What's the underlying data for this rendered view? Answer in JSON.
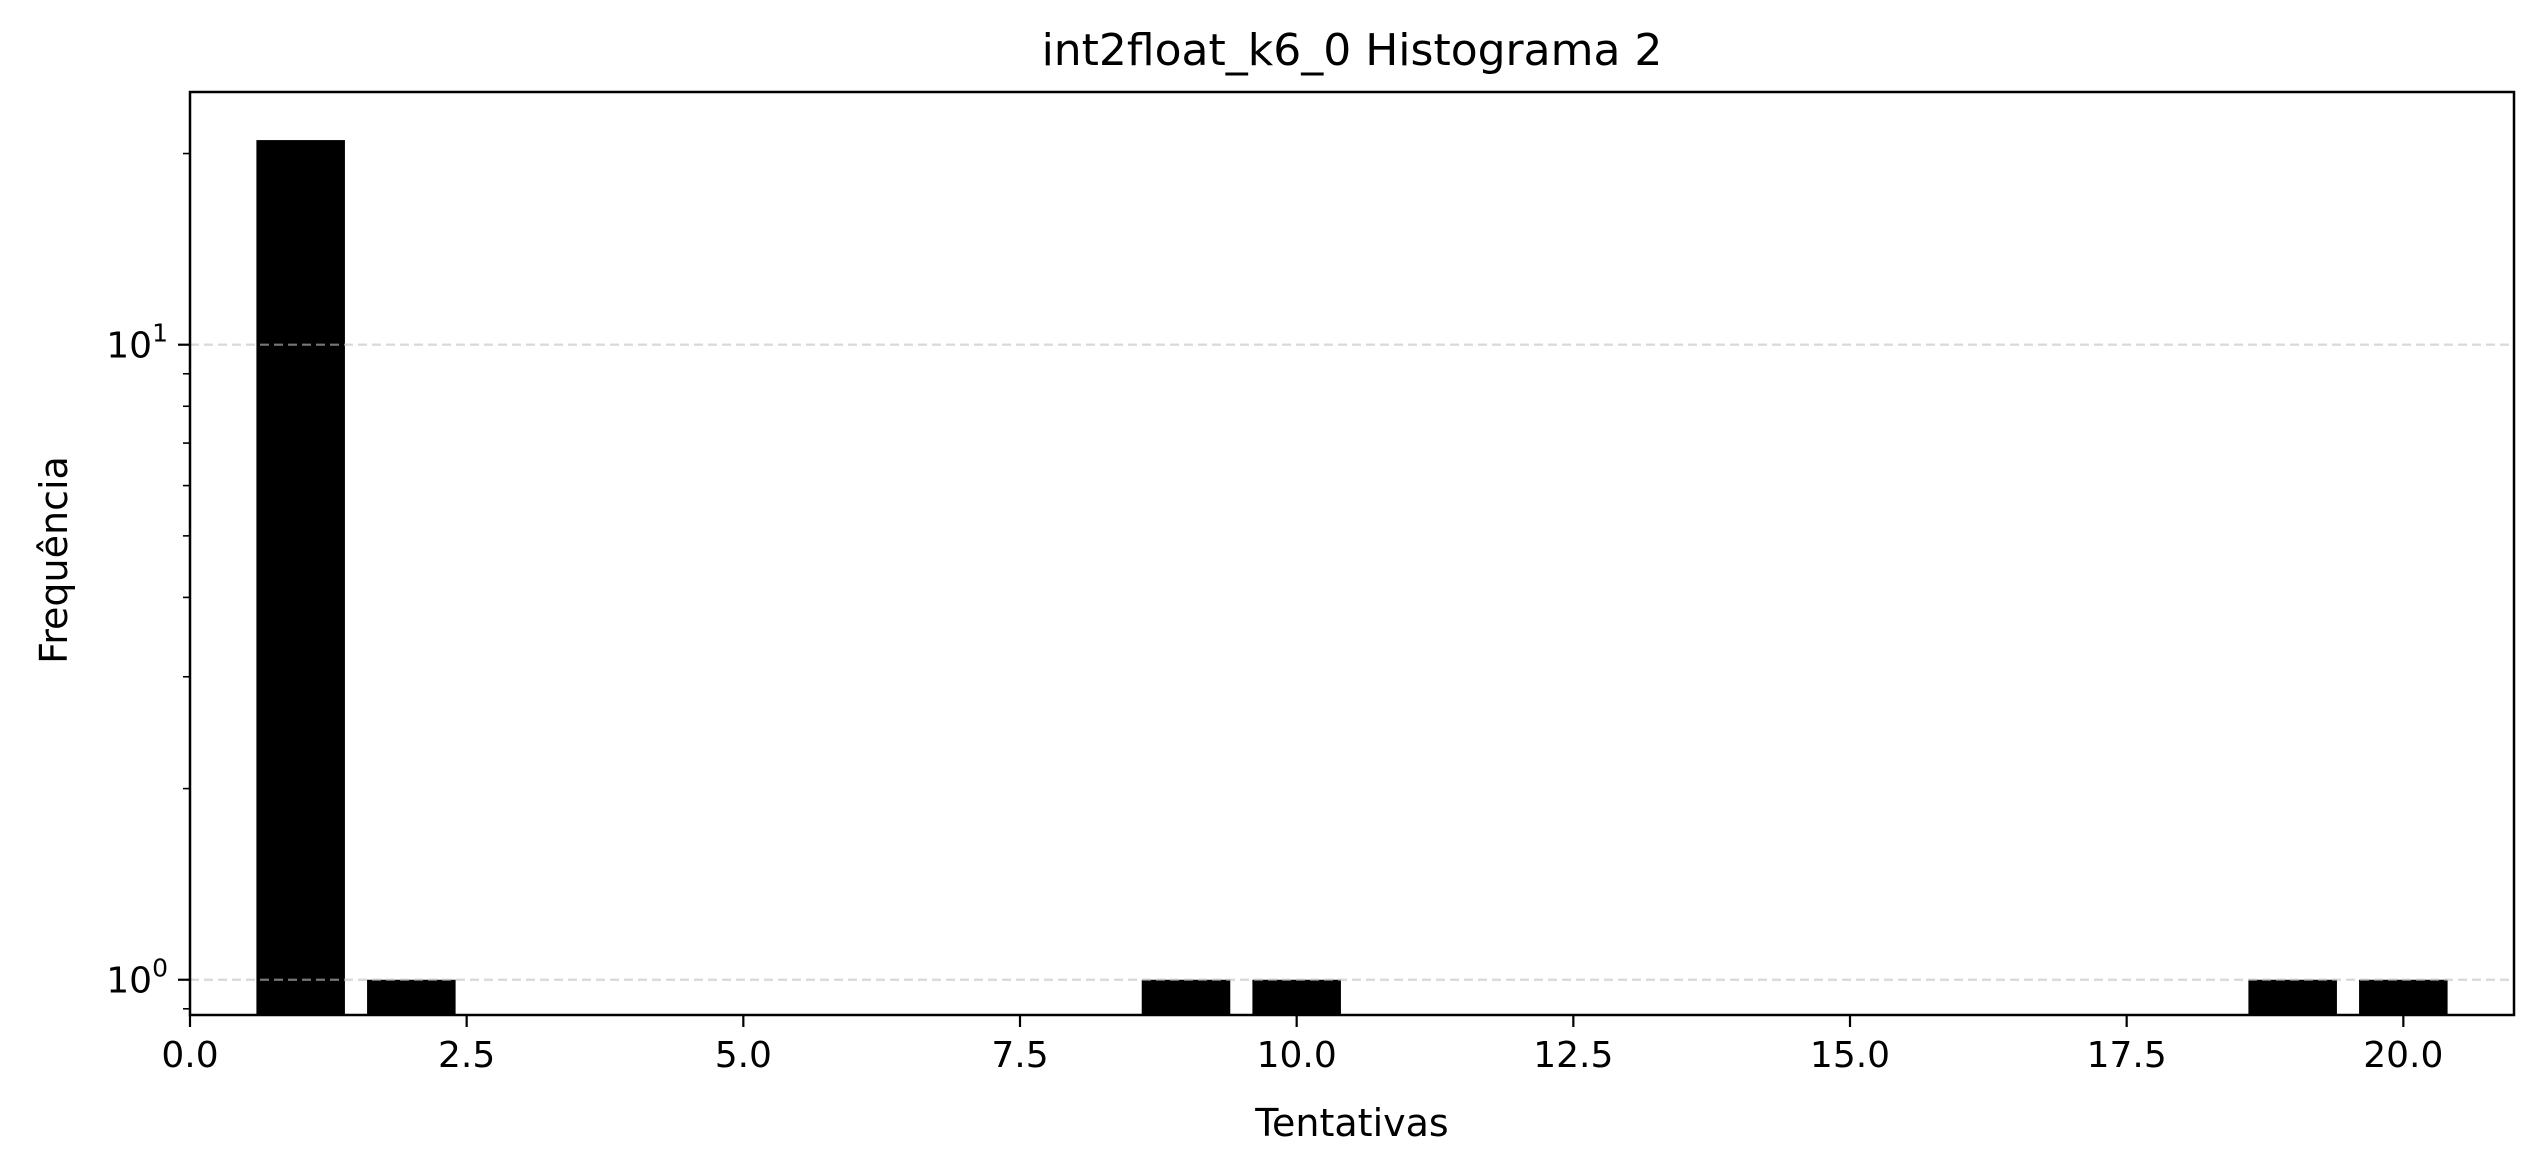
{
  "chart_data": {
    "type": "bar",
    "title": "int2float_k6_0 Histograma 2",
    "xlabel": "Tentativas",
    "ylabel": "Frequência",
    "y_scale": "log",
    "x": [
      1,
      2,
      9,
      10,
      19,
      20
    ],
    "values": [
      21,
      1,
      1,
      1,
      1,
      1
    ],
    "bar_width": 0.8,
    "bar_color": "#000000",
    "xlim": [
      0,
      21
    ],
    "ylim": [
      0.88,
      25
    ],
    "x_ticks": [
      0.0,
      2.5,
      5.0,
      7.5,
      10.0,
      12.5,
      15.0,
      17.5,
      20.0
    ],
    "x_tick_labels": [
      "0.0",
      "2.5",
      "5.0",
      "7.5",
      "10.0",
      "12.5",
      "15.0",
      "17.5",
      "20.0"
    ],
    "y_major_ticks": [
      1,
      10
    ],
    "y_major_tick_labels": [
      {
        "base": "10",
        "exp": "0"
      },
      {
        "base": "10",
        "exp": "1"
      }
    ],
    "grid": "y-major dashed",
    "grid_color": "#d9d9d9"
  }
}
